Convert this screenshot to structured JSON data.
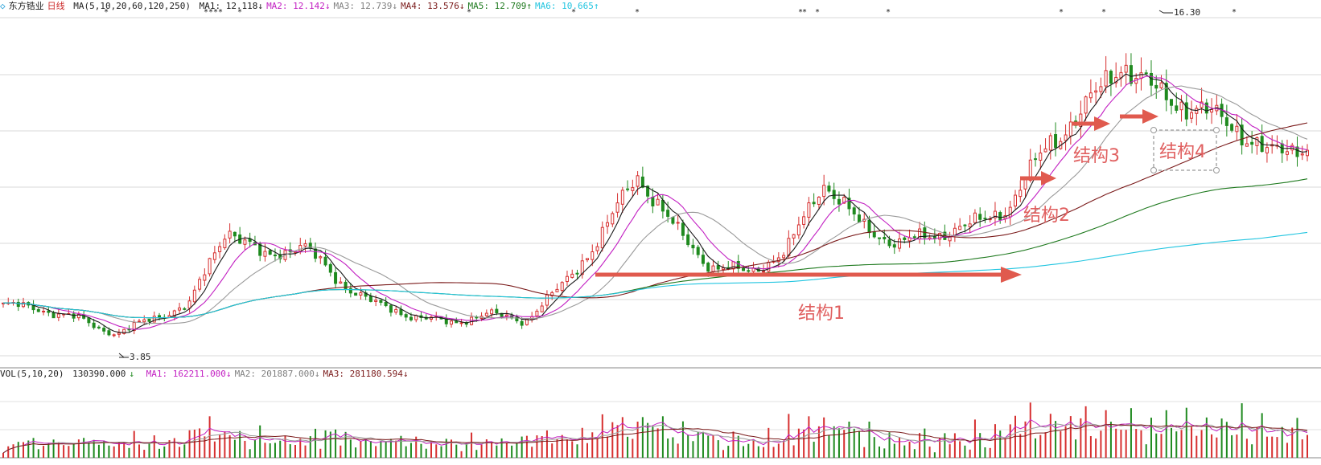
{
  "legend": {
    "title_symbol": "◇",
    "stock_name": "东方锆业",
    "period": "日线",
    "ma_params": "MA(5,10,20,60,120,250)",
    "ma_items": [
      {
        "label": "MA1: 12.118",
        "arrow": "↓",
        "color": "#1a1a1a"
      },
      {
        "label": "MA2: 12.142",
        "arrow": "↓",
        "color": "#c21fc2"
      },
      {
        "label": "MA3: 12.739",
        "arrow": "↓",
        "color": "#808080"
      },
      {
        "label": "MA4: 13.576",
        "arrow": "↓",
        "color": "#7a1a1a"
      },
      {
        "label": "MA5: 12.709",
        "arrow": "↑",
        "color": "#1f7a1f"
      },
      {
        "label": "MA6: 10.665",
        "arrow": "↑",
        "color": "#22c5e0"
      }
    ]
  },
  "vol_legend": {
    "params": "VOL(5,10,20)",
    "vol_value": "130390.000",
    "vol_arrow": "↓",
    "items": [
      {
        "label": "MA1: 162211.000",
        "arrow": "↓",
        "color": "#c21fc2"
      },
      {
        "label": "MA2: 201887.000",
        "arrow": "↓",
        "color": "#808080"
      },
      {
        "label": "MA3: 281180.594",
        "arrow": "↓",
        "color": "#7a1a1a"
      }
    ]
  },
  "price_labels": {
    "high": "16.30",
    "low": "3.85"
  },
  "annotations": [
    "结构1",
    "结构2",
    "结构3",
    "结构4"
  ],
  "colors": {
    "up": "#d62f2f",
    "down": "#1f8a1f",
    "arrow": "#e05a4e",
    "grid": "#d8d8d8"
  },
  "chart_data": {
    "type": "candlestick",
    "title": "东方锆业 日线",
    "y_range_approx": [
      3.0,
      17.5
    ],
    "key_points": [
      {
        "label": "low",
        "value": 3.85
      },
      {
        "label": "high",
        "value": 16.3
      }
    ],
    "close_path_approx": [
      5.2,
      5.0,
      4.6,
      3.9,
      4.6,
      5.2,
      8.5,
      7.2,
      7.8,
      6.2,
      5.2,
      4.7,
      4.4,
      4.8,
      4.5,
      6.0,
      8.0,
      10.8,
      8.5,
      6.8,
      6.6,
      7.4,
      10.5,
      8.6,
      7.8,
      8.2,
      8.6,
      9.4,
      12.0,
      13.5,
      15.6,
      14.2,
      13.6,
      12.9,
      11.6,
      12.1
    ]
  }
}
